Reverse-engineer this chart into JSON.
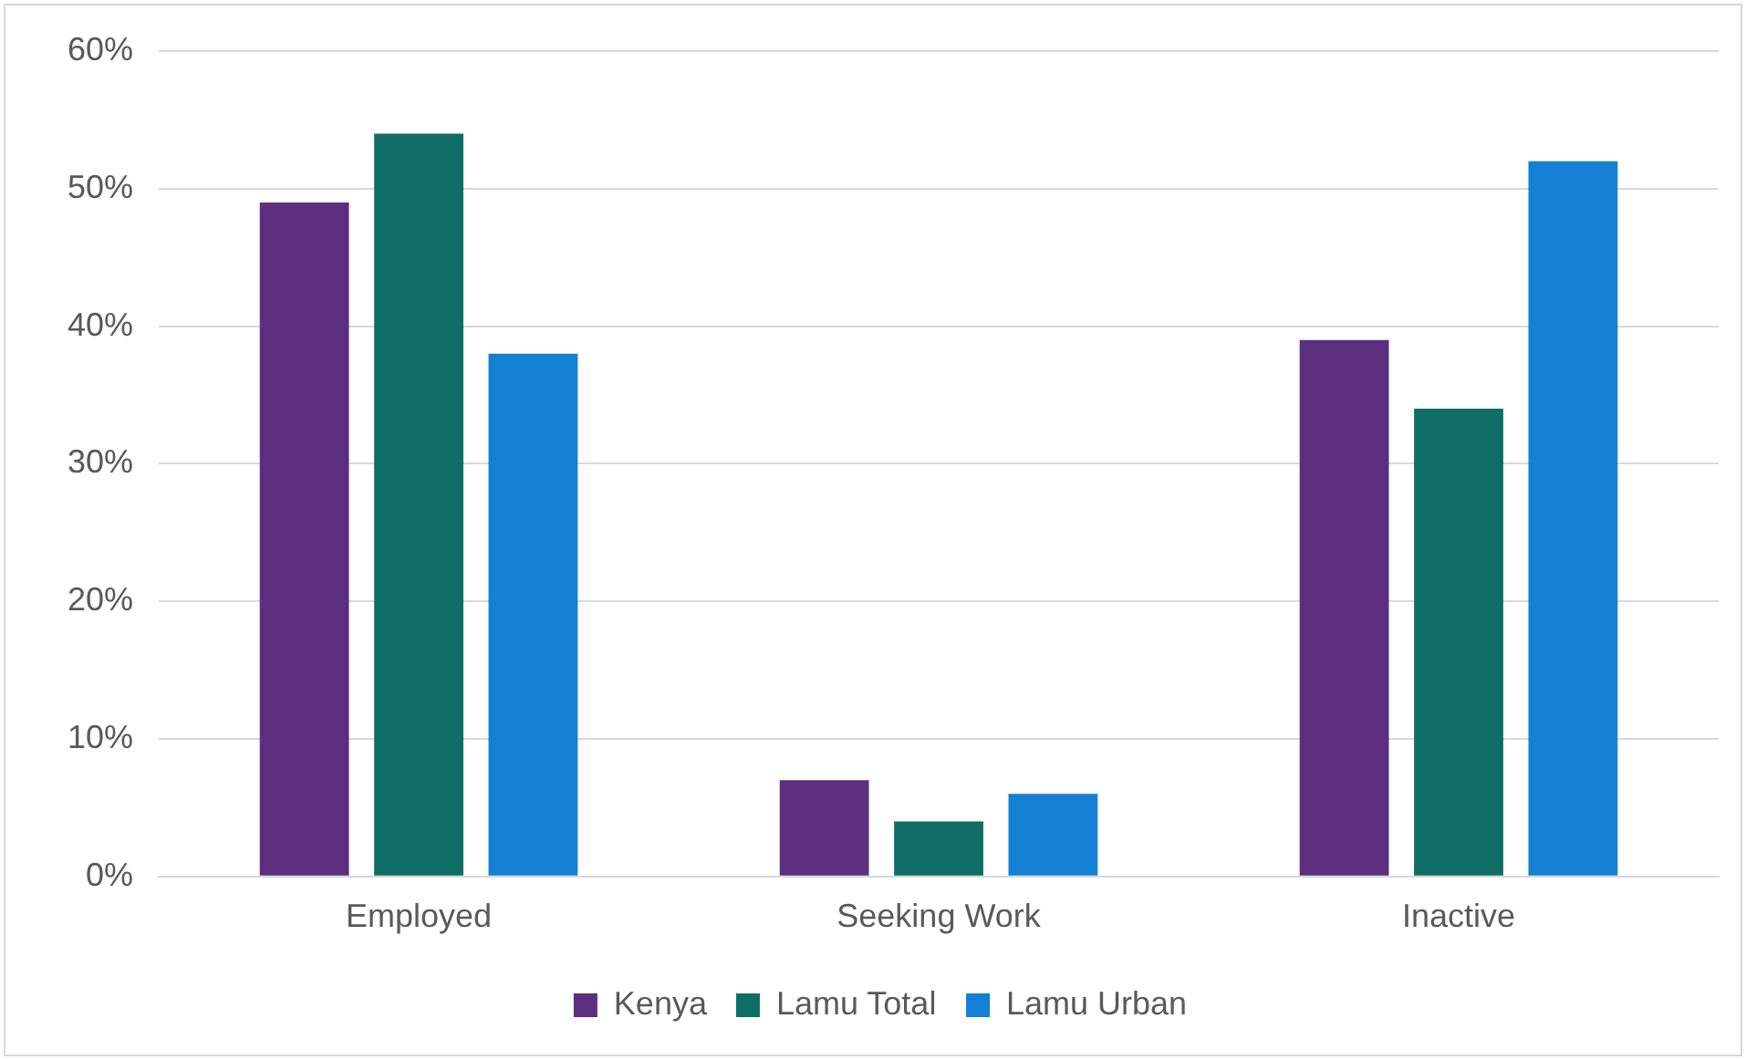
{
  "chart_data": {
    "type": "bar",
    "categories": [
      "Employed",
      "Seeking Work",
      "Inactive"
    ],
    "series": [
      {
        "name": "Kenya",
        "color": "#5b2f7d",
        "values": [
          49,
          7,
          39
        ]
      },
      {
        "name": "Lamu Total",
        "color": "#0e6e65",
        "values": [
          54,
          4,
          34
        ]
      },
      {
        "name": "Lamu Urban",
        "color": "#1380d3",
        "values": [
          38,
          6,
          52
        ]
      }
    ],
    "ylim": [
      0,
      60
    ],
    "yticks": [
      {
        "value": 0,
        "label": "0%"
      },
      {
        "value": 10,
        "label": "10%"
      },
      {
        "value": 20,
        "label": "20%"
      },
      {
        "value": 30,
        "label": "30%"
      },
      {
        "value": 40,
        "label": "40%"
      },
      {
        "value": 50,
        "label": "50%"
      },
      {
        "value": 60,
        "label": "60%"
      }
    ],
    "grid": "y",
    "legend": "bottom"
  }
}
